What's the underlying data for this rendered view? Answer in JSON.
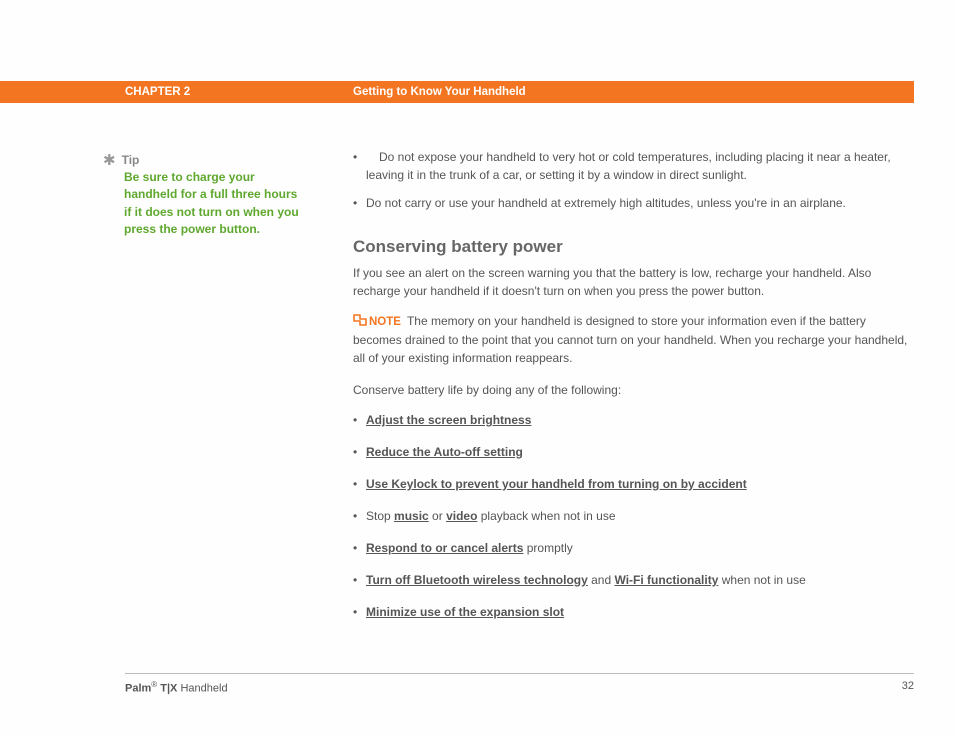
{
  "header": {
    "chapter": "CHAPTER 2",
    "title": "Getting to Know Your Handheld",
    "bar_color": "#f47521"
  },
  "sidebar": {
    "tip_label": "Tip",
    "tip_body": "Be sure to charge your handheld for a full three hours if it does not turn on when you press the power button.",
    "tip_color": "#5fa82e"
  },
  "main": {
    "top_bullets": [
      "Do not expose your handheld to very hot or cold temperatures, including placing it near a heater, leaving it in the trunk of a car, or setting it by a window in direct sunlight.",
      "Do not carry or use your handheld at extremely high altitudes, unless you're in an airplane."
    ],
    "section_title": "Conserving battery power",
    "intro_para": "If you see an alert on the screen warning you that the battery is low, recharge your handheld. Also recharge your handheld if it doesn't turn on when you press the power button.",
    "note_label": "NOTE",
    "note_body": "The memory on your handheld is designed to store your information even if the battery becomes drained to the point that you cannot turn on your handheld. When you recharge your handheld, all of your existing information reappears.",
    "conserve_lead": "Conserve battery life by doing any of the following:",
    "actions": [
      {
        "parts": [
          {
            "text": "Adjust the screen brightness",
            "link": true
          }
        ]
      },
      {
        "parts": [
          {
            "text": "Reduce the Auto-off setting",
            "link": true
          }
        ]
      },
      {
        "parts": [
          {
            "text": "Use Keylock to prevent your handheld from turning on by accident",
            "link": true
          }
        ]
      },
      {
        "parts": [
          {
            "text": "Stop "
          },
          {
            "text": "music",
            "link": true
          },
          {
            "text": " or "
          },
          {
            "text": "video",
            "link": true
          },
          {
            "text": " playback when not in use"
          }
        ]
      },
      {
        "parts": [
          {
            "text": "Respond to or cancel alerts",
            "link": true
          },
          {
            "text": " promptly"
          }
        ]
      },
      {
        "parts": [
          {
            "text": "Turn off Bluetooth wireless technology",
            "link": true
          },
          {
            "text": " and "
          },
          {
            "text": "Wi-Fi functionality",
            "link": true
          },
          {
            "text": " when not in use"
          }
        ]
      },
      {
        "parts": [
          {
            "text": "Minimize use of the expansion slot",
            "link": true
          }
        ]
      }
    ]
  },
  "footer": {
    "brand_bold": "Palm",
    "brand_model": " T|X",
    "brand_rest": " Handheld",
    "page_number": "32"
  }
}
